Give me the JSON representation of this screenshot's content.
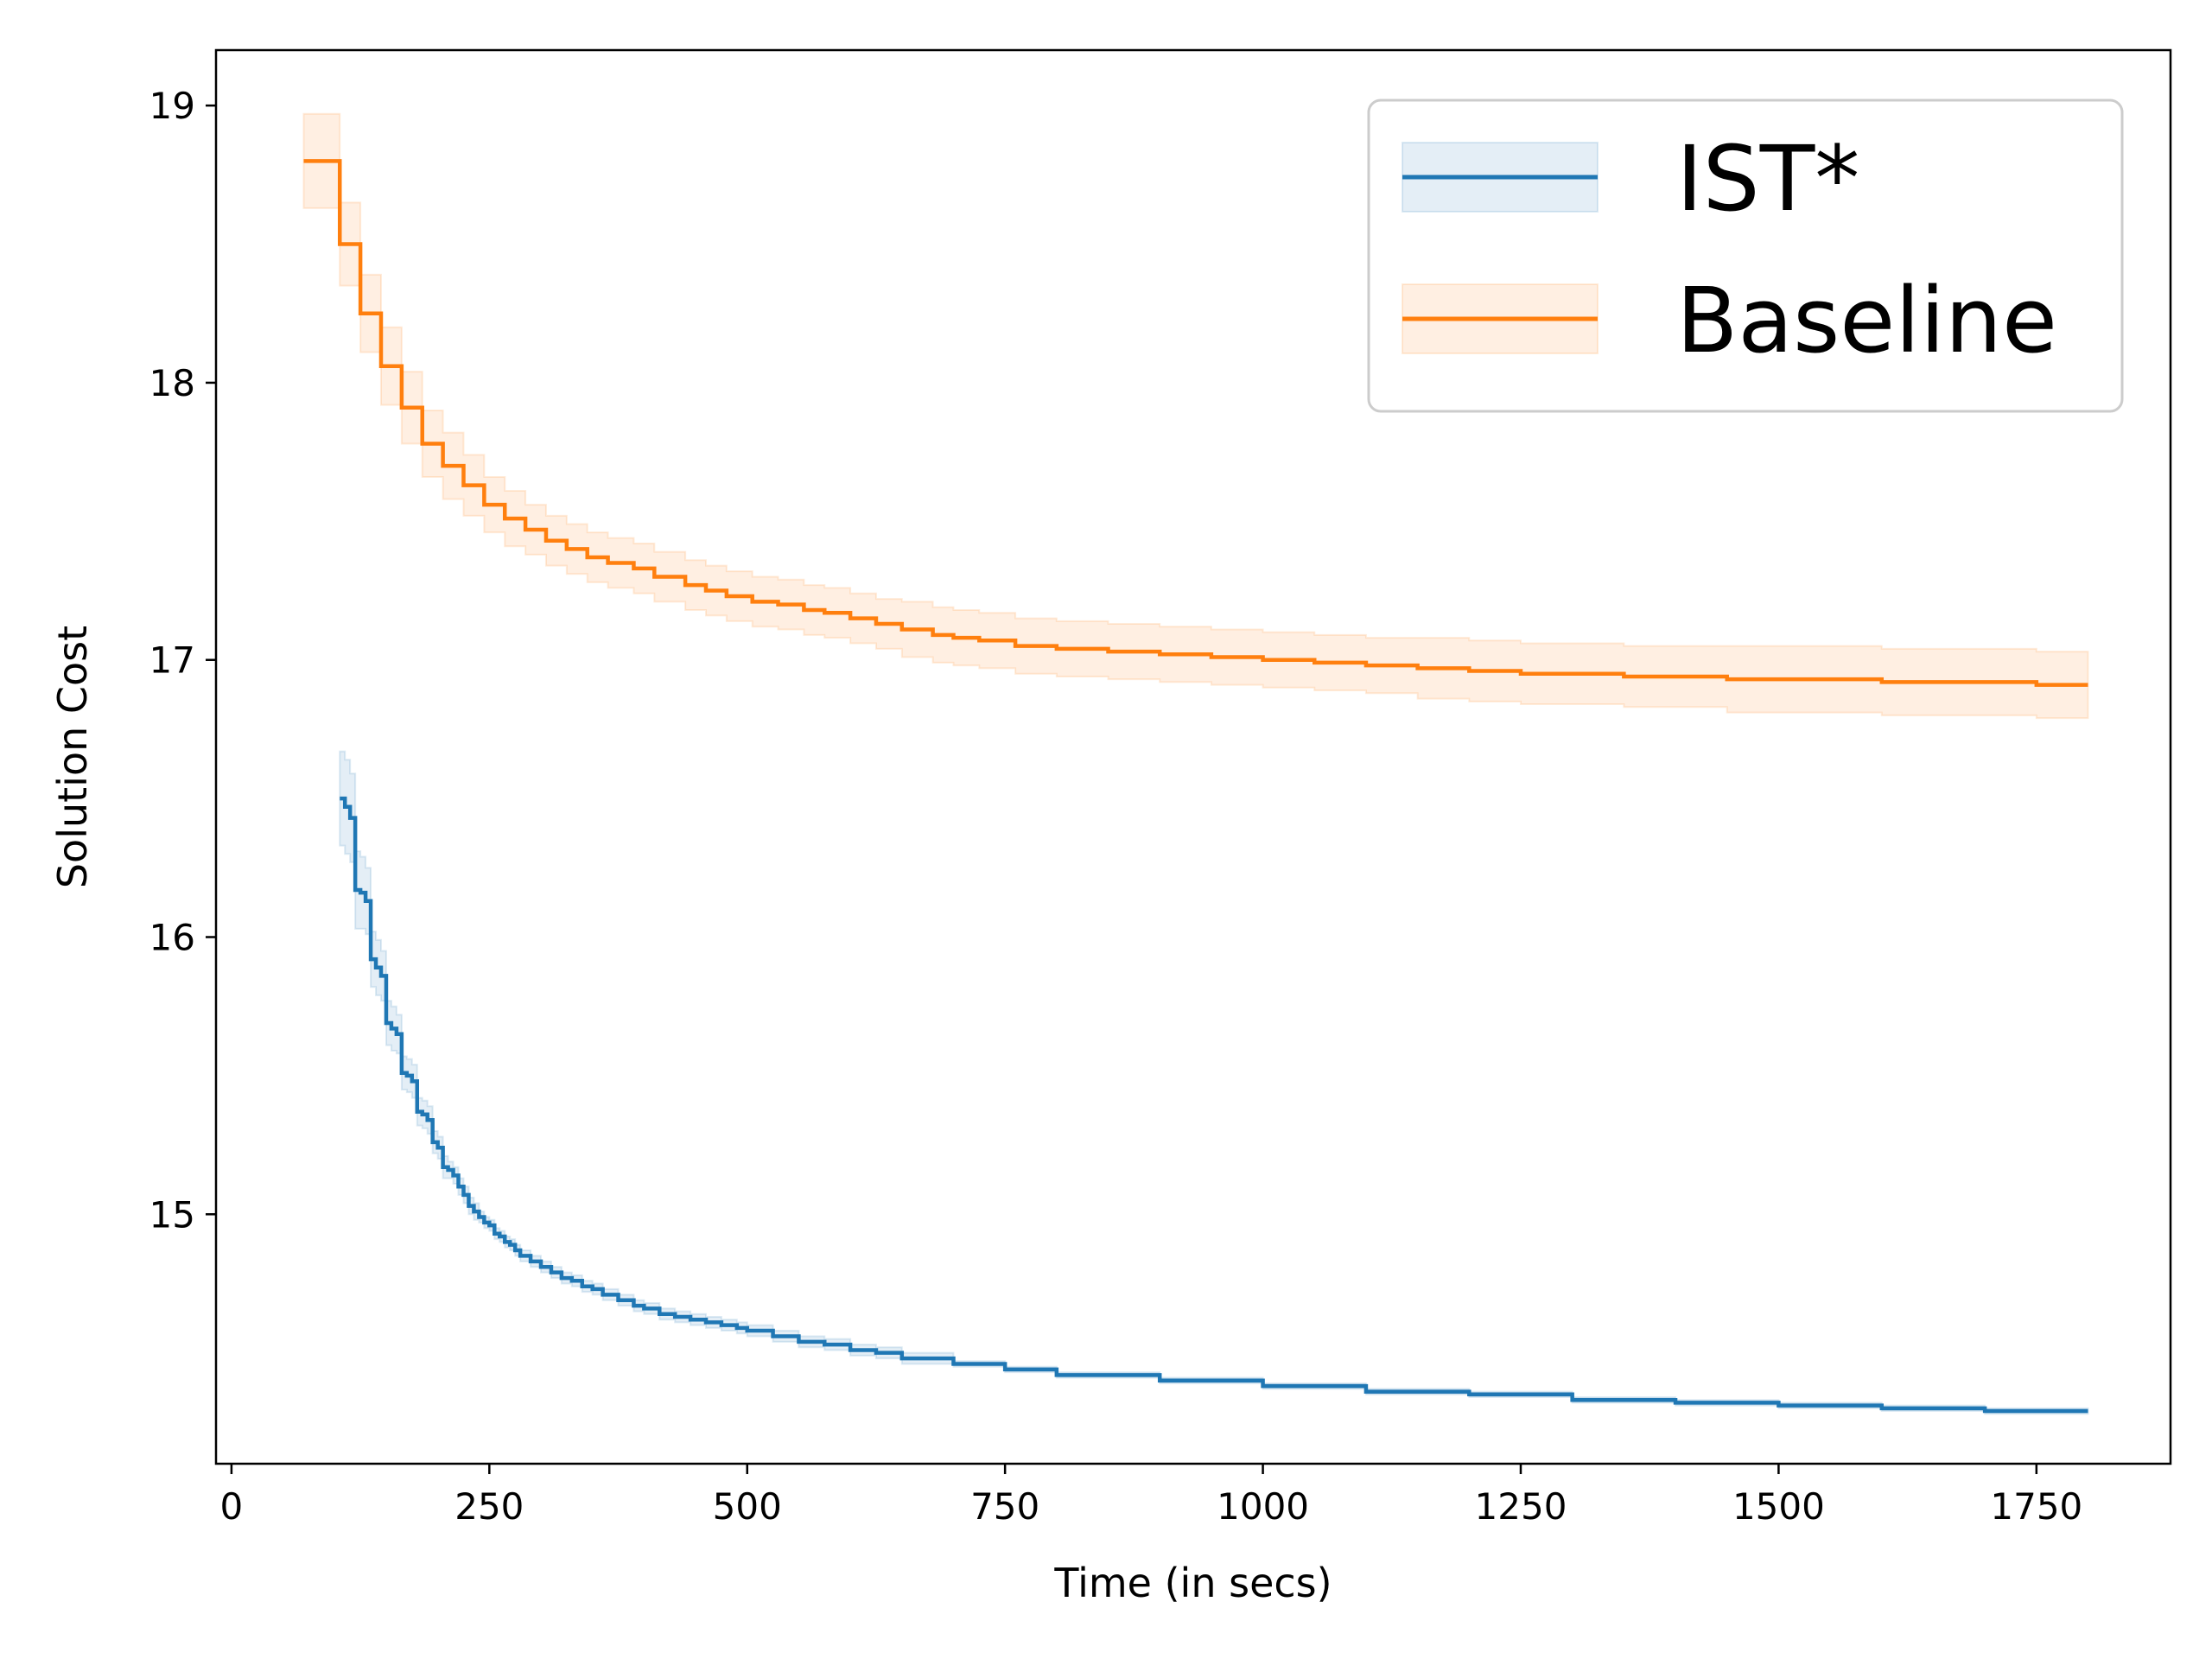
{
  "chart_data": {
    "type": "line",
    "title": "",
    "xlabel": "Time (in secs)",
    "ylabel": "Solution Cost",
    "xlim": [
      -15,
      1880
    ],
    "ylim": [
      14.1,
      19.2
    ],
    "xticks": [
      0,
      250,
      500,
      750,
      1000,
      1250,
      1500,
      1750
    ],
    "yticks": [
      15,
      16,
      17,
      18,
      19
    ],
    "grid": false,
    "legend_position": "top-right",
    "series": [
      {
        "name": "IST*",
        "color": "#1f77b4",
        "band_color": "#1f77b4",
        "step": true,
        "x": [
          105,
          110,
          115,
          120,
          125,
          130,
          135,
          140,
          145,
          150,
          155,
          160,
          165,
          170,
          175,
          180,
          185,
          190,
          195,
          200,
          205,
          210,
          215,
          220,
          225,
          230,
          235,
          240,
          245,
          250,
          255,
          260,
          265,
          270,
          275,
          280,
          290,
          300,
          310,
          320,
          330,
          340,
          350,
          360,
          375,
          390,
          400,
          415,
          430,
          445,
          460,
          475,
          490,
          500,
          525,
          550,
          575,
          600,
          625,
          650,
          700,
          750,
          800,
          900,
          1000,
          1100,
          1200,
          1300,
          1400,
          1500,
          1600,
          1700,
          1800
        ],
        "y": [
          16.5,
          16.47,
          16.43,
          16.17,
          16.16,
          16.13,
          15.92,
          15.89,
          15.86,
          15.69,
          15.67,
          15.65,
          15.51,
          15.5,
          15.48,
          15.37,
          15.36,
          15.34,
          15.26,
          15.24,
          15.17,
          15.16,
          15.14,
          15.1,
          15.07,
          15.03,
          15.01,
          14.99,
          14.97,
          14.96,
          14.93,
          14.92,
          14.9,
          14.89,
          14.87,
          14.85,
          14.83,
          14.81,
          14.79,
          14.77,
          14.76,
          14.74,
          14.73,
          14.71,
          14.69,
          14.67,
          14.66,
          14.64,
          14.63,
          14.62,
          14.61,
          14.6,
          14.59,
          14.58,
          14.56,
          14.54,
          14.53,
          14.51,
          14.5,
          14.48,
          14.46,
          14.44,
          14.42,
          14.4,
          14.38,
          14.36,
          14.35,
          14.33,
          14.32,
          14.31,
          14.3,
          14.29,
          14.29
        ],
        "band": [
          0.17,
          0.17,
          0.16,
          0.14,
          0.13,
          0.12,
          0.1,
          0.1,
          0.09,
          0.08,
          0.08,
          0.07,
          0.06,
          0.06,
          0.06,
          0.05,
          0.05,
          0.05,
          0.04,
          0.04,
          0.04,
          0.03,
          0.03,
          0.03,
          0.03,
          0.03,
          0.03,
          0.02,
          0.02,
          0.02,
          0.02,
          0.02,
          0.02,
          0.02,
          0.02,
          0.02,
          0.02,
          0.02,
          0.02,
          0.02,
          0.02,
          0.02,
          0.02,
          0.02,
          0.02,
          0.02,
          0.02,
          0.02,
          0.02,
          0.02,
          0.02,
          0.02,
          0.02,
          0.02,
          0.02,
          0.02,
          0.02,
          0.02,
          0.02,
          0.02,
          0.01,
          0.01,
          0.01,
          0.01,
          0.01,
          0.01,
          0.01,
          0.01,
          0.01,
          0.01,
          0.01,
          0.01,
          0.01
        ]
      },
      {
        "name": "Baseline",
        "color": "#ff7f0e",
        "band_color": "#ff7f0e",
        "step": true,
        "x": [
          70,
          90,
          105,
          125,
          145,
          165,
          185,
          205,
          225,
          245,
          265,
          285,
          305,
          325,
          345,
          365,
          390,
          410,
          440,
          460,
          480,
          505,
          530,
          555,
          575,
          600,
          625,
          650,
          680,
          700,
          725,
          760,
          800,
          850,
          900,
          950,
          1000,
          1050,
          1100,
          1150,
          1200,
          1250,
          1300,
          1350,
          1400,
          1450,
          1500,
          1550,
          1600,
          1650,
          1700,
          1750,
          1800
        ],
        "y": [
          18.8,
          18.8,
          18.5,
          18.25,
          18.06,
          17.91,
          17.78,
          17.7,
          17.63,
          17.56,
          17.51,
          17.47,
          17.43,
          17.4,
          17.37,
          17.35,
          17.33,
          17.3,
          17.27,
          17.25,
          17.23,
          17.21,
          17.2,
          17.18,
          17.17,
          17.15,
          17.13,
          17.11,
          17.09,
          17.08,
          17.07,
          17.05,
          17.04,
          17.03,
          17.02,
          17.01,
          17.0,
          16.99,
          16.98,
          16.97,
          16.96,
          16.95,
          16.95,
          16.94,
          16.94,
          16.93,
          16.93,
          16.93,
          16.92,
          16.92,
          16.92,
          16.91,
          16.91
        ],
        "band": [
          0.17,
          0.17,
          0.15,
          0.14,
          0.14,
          0.13,
          0.12,
          0.12,
          0.11,
          0.1,
          0.1,
          0.09,
          0.09,
          0.09,
          0.09,
          0.09,
          0.09,
          0.09,
          0.09,
          0.09,
          0.09,
          0.09,
          0.09,
          0.09,
          0.09,
          0.09,
          0.09,
          0.1,
          0.1,
          0.1,
          0.1,
          0.1,
          0.1,
          0.1,
          0.1,
          0.1,
          0.1,
          0.1,
          0.1,
          0.11,
          0.11,
          0.11,
          0.11,
          0.11,
          0.11,
          0.12,
          0.12,
          0.12,
          0.12,
          0.12,
          0.12,
          0.12,
          0.12
        ]
      }
    ]
  }
}
